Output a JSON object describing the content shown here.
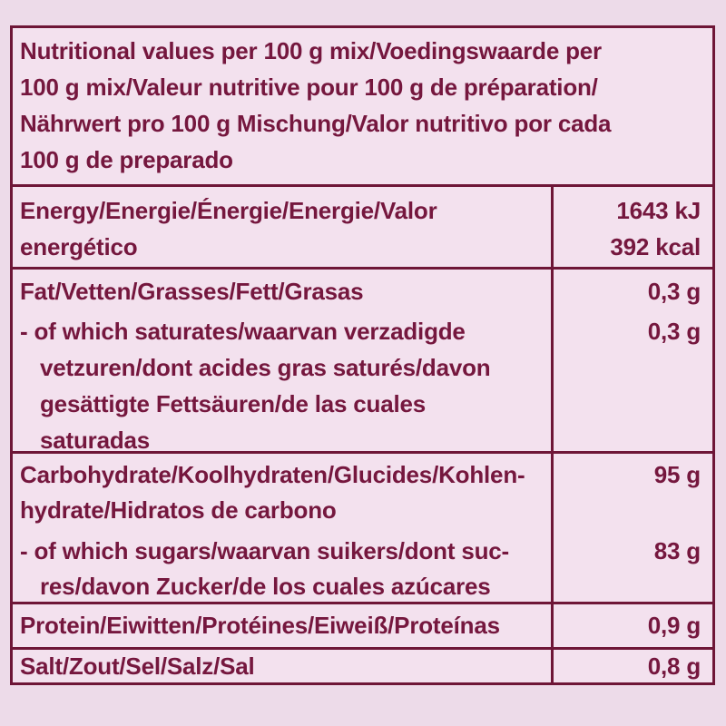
{
  "colors": {
    "page_background": "#eddbe9",
    "panel_background": "#f3e1ee",
    "ink": "#75173e",
    "border": "#6e1637"
  },
  "header": {
    "text": "Nutritional values per 100 g mix/Voedingswaarde per\n100 g mix/Valeur nutritive pour 100 g de préparation/\nNährwert pro 100 g Mischung/Valor nutritivo por cada\n100 g de preparado"
  },
  "rows": {
    "energy": {
      "label": "Energy/Energie/Énergie/Energie/Valor\nenergético",
      "value": "1643 kJ\n392 kcal"
    },
    "fat": {
      "label": "Fat/Vetten/Grasses/Fett/Grasas",
      "value": "0,3 g"
    },
    "saturates": {
      "label": "- of which saturates/waarvan verzadigde\nvetzuren/dont acides gras saturés/davon\ngesättigte Fettsäuren/de las cuales\nsaturadas",
      "value": "0,3 g"
    },
    "carbohydrate": {
      "label": "Carbohydrate/Koolhydraten/Glucides/Kohlen-\nhydrate/Hidratos de carbono",
      "value": "95 g"
    },
    "sugars": {
      "label": "- of which sugars/waarvan suikers/dont suc-\nres/davon Zucker/de los cuales azúcares",
      "value": "83 g"
    },
    "protein": {
      "label": "Protein/Eiwitten/Protéines/Eiweiß/Proteínas",
      "value": "0,9 g"
    },
    "salt": {
      "label": "Salt/Zout/Sel/Salz/Sal",
      "value": "0,8 g"
    }
  }
}
